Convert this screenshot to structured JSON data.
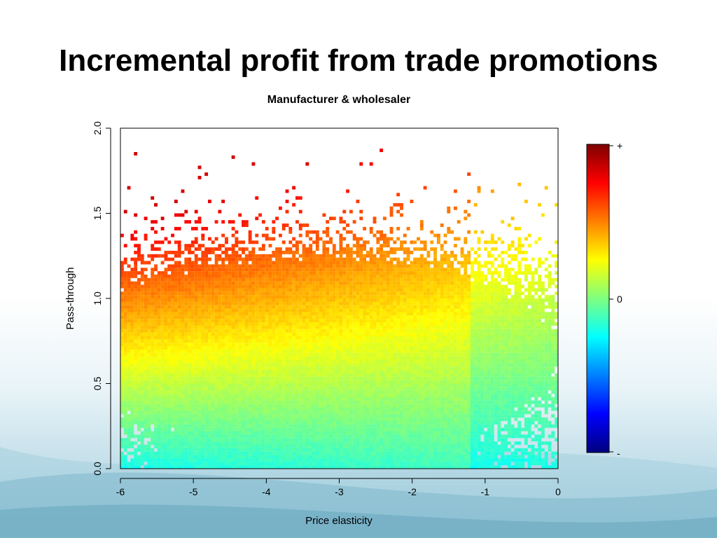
{
  "slide": {
    "title": "Incremental profit from trade promotions"
  },
  "chart_data": {
    "type": "heatmap",
    "title": "Manufacturer & wholesaler",
    "xlabel": "Price elasticity",
    "ylabel": "Pass-through",
    "xlim": [
      -6,
      0
    ],
    "ylim": [
      0,
      2
    ],
    "x_ticks": [
      "-6",
      "-5",
      "-4",
      "-3",
      "-2",
      "-1",
      "0"
    ],
    "y_ticks": [
      "0.0",
      "0.5",
      "1.0",
      "1.5",
      "2.0"
    ],
    "grid": false,
    "legend": "right",
    "colorbar": {
      "top_label": "+",
      "mid_label": "0",
      "bottom_label": "-",
      "colors": [
        "#00007f",
        "#0000ff",
        "#007fff",
        "#00ffff",
        "#7fff7f",
        "#ffff00",
        "#ff7f00",
        "#ff0000",
        "#7f0000"
      ]
    },
    "value_description": "incremental profit rises with pass-through; mostly near 0 (green-cyan) at low pass-through, positive (yellow-red) at high pass-through and more elastic demand",
    "bin_count": [
      130,
      100
    ]
  }
}
